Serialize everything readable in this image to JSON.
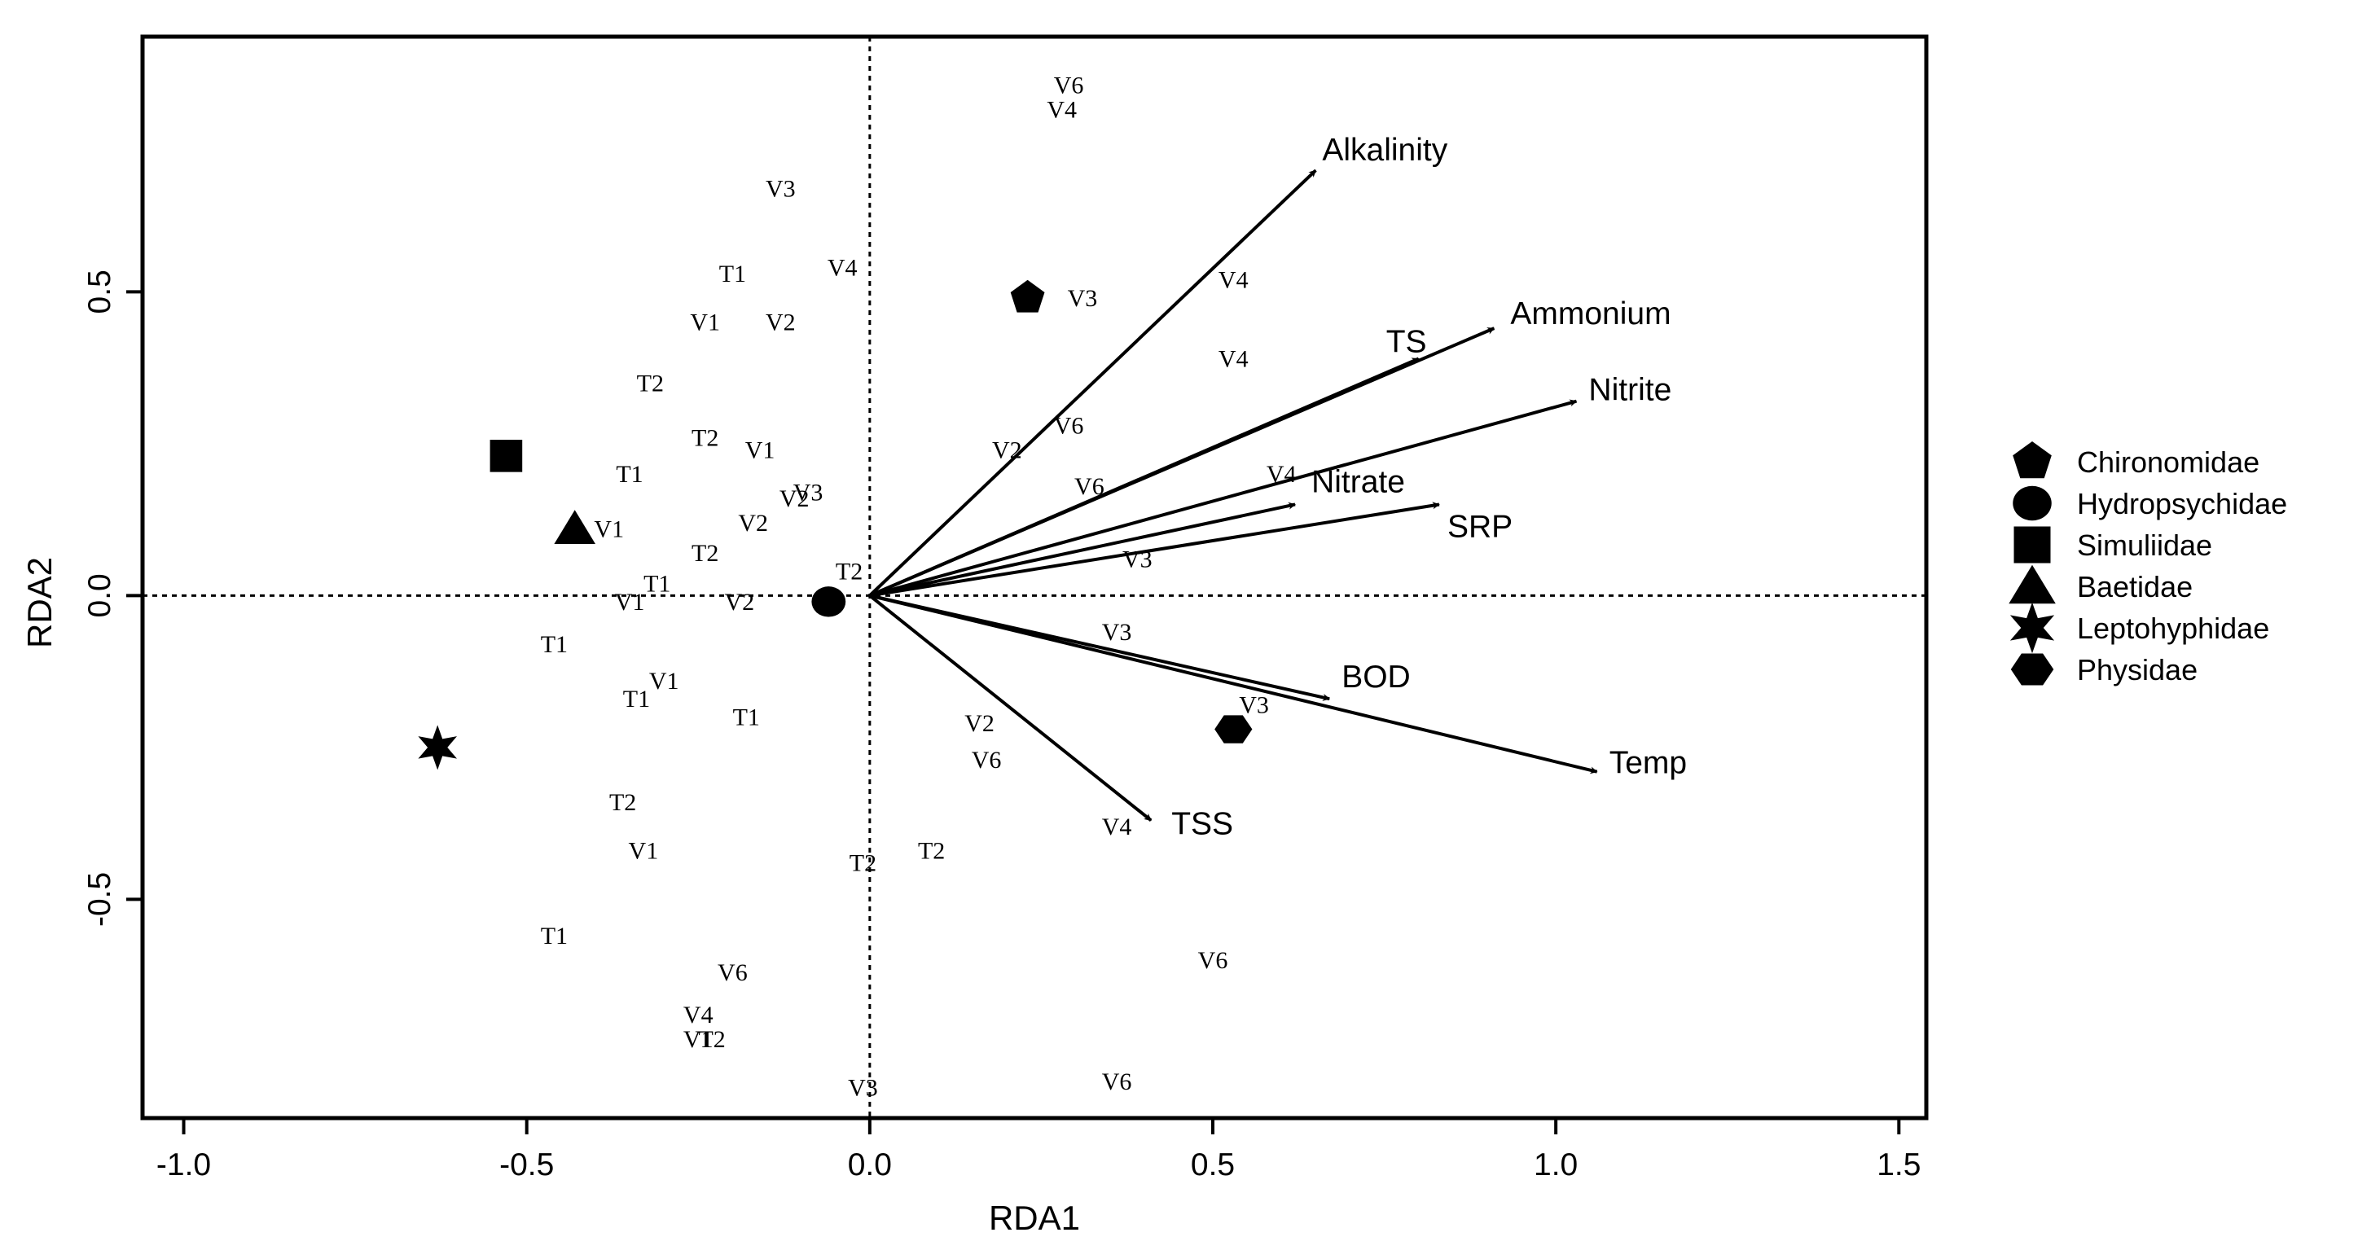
{
  "chart_data": {
    "type": "scatter",
    "subtype": "rda-biplot",
    "title": "",
    "xlabel": "RDA1",
    "ylabel": "RDA2",
    "xlim": [
      -1.06,
      1.54
    ],
    "ylim": [
      -0.86,
      0.92
    ],
    "xticks": [
      -1.0,
      -0.5,
      0.0,
      0.5,
      1.0,
      1.5
    ],
    "xtick_labels": [
      "-1.0",
      "-0.5",
      "0.0",
      "0.5",
      "1.0",
      "1.5"
    ],
    "yticks": [
      -0.5,
      0.0,
      0.5
    ],
    "ytick_labels": [
      "-0.5",
      "0.0",
      "0.5"
    ],
    "reference_lines": {
      "x": 0,
      "y": 0,
      "style": "dotted"
    },
    "sites": [
      {
        "label": "V6",
        "x": 0.29,
        "y": 0.84
      },
      {
        "label": "V4",
        "x": 0.28,
        "y": 0.8
      },
      {
        "label": "V3",
        "x": -0.13,
        "y": 0.67
      },
      {
        "label": "T1",
        "x": -0.2,
        "y": 0.53
      },
      {
        "label": "V4",
        "x": -0.04,
        "y": 0.54
      },
      {
        "label": "V1",
        "x": -0.24,
        "y": 0.45
      },
      {
        "label": "V2",
        "x": -0.13,
        "y": 0.45
      },
      {
        "label": "V3",
        "x": 0.31,
        "y": 0.49
      },
      {
        "label": "V4",
        "x": 0.53,
        "y": 0.52
      },
      {
        "label": "V4",
        "x": 0.53,
        "y": 0.39
      },
      {
        "label": "T2",
        "x": -0.32,
        "y": 0.35
      },
      {
        "label": "T2",
        "x": -0.24,
        "y": 0.26
      },
      {
        "label": "V1",
        "x": -0.16,
        "y": 0.24
      },
      {
        "label": "V2",
        "x": 0.2,
        "y": 0.24
      },
      {
        "label": "V6",
        "x": 0.29,
        "y": 0.28
      },
      {
        "label": "T1",
        "x": -0.35,
        "y": 0.2
      },
      {
        "label": "V6",
        "x": 0.32,
        "y": 0.18
      },
      {
        "label": "V4",
        "x": 0.6,
        "y": 0.2
      },
      {
        "label": "V3",
        "x": -0.09,
        "y": 0.17
      },
      {
        "label": "V2",
        "x": -0.11,
        "y": 0.16
      },
      {
        "label": "V1",
        "x": -0.38,
        "y": 0.11
      },
      {
        "label": "V2",
        "x": -0.17,
        "y": 0.12
      },
      {
        "label": "T2",
        "x": -0.24,
        "y": 0.07
      },
      {
        "label": "V3",
        "x": 0.39,
        "y": 0.06
      },
      {
        "label": "T1",
        "x": -0.31,
        "y": 0.02
      },
      {
        "label": "T2",
        "x": -0.03,
        "y": 0.04
      },
      {
        "label": "V1",
        "x": -0.35,
        "y": -0.01
      },
      {
        "label": "V2",
        "x": -0.19,
        "y": -0.01
      },
      {
        "label": "T1",
        "x": -0.46,
        "y": -0.08
      },
      {
        "label": "V3",
        "x": 0.36,
        "y": -0.06
      },
      {
        "label": "V1",
        "x": -0.3,
        "y": -0.14
      },
      {
        "label": "T1",
        "x": -0.34,
        "y": -0.17
      },
      {
        "label": "T1",
        "x": -0.18,
        "y": -0.2
      },
      {
        "label": "V3",
        "x": 0.56,
        "y": -0.18
      },
      {
        "label": "V2",
        "x": 0.16,
        "y": -0.21
      },
      {
        "label": "V6",
        "x": 0.17,
        "y": -0.27
      },
      {
        "label": "T2",
        "x": -0.36,
        "y": -0.34
      },
      {
        "label": "V4",
        "x": 0.36,
        "y": -0.38
      },
      {
        "label": "V1",
        "x": -0.33,
        "y": -0.42
      },
      {
        "label": "T2",
        "x": -0.01,
        "y": -0.44
      },
      {
        "label": "T2",
        "x": 0.09,
        "y": -0.42
      },
      {
        "label": "T1",
        "x": -0.46,
        "y": -0.56
      },
      {
        "label": "V6",
        "x": -0.2,
        "y": -0.62
      },
      {
        "label": "V6",
        "x": 0.5,
        "y": -0.6
      },
      {
        "label": "V4",
        "x": -0.25,
        "y": -0.69
      },
      {
        "label": "V1",
        "x": -0.25,
        "y": -0.73
      },
      {
        "label": "T2",
        "x": -0.23,
        "y": -0.73
      },
      {
        "label": "V6",
        "x": 0.36,
        "y": -0.8
      },
      {
        "label": "V3",
        "x": -0.01,
        "y": -0.81
      }
    ],
    "vectors": [
      {
        "label": "Alkalinity",
        "x": 0.65,
        "y": 0.7
      },
      {
        "label": "Ammonium",
        "x": 0.91,
        "y": 0.44
      },
      {
        "label": "TS",
        "x": 0.8,
        "y": 0.39
      },
      {
        "label": "Nitrite",
        "x": 1.03,
        "y": 0.32
      },
      {
        "label": "Nitrate",
        "x": 0.62,
        "y": 0.15
      },
      {
        "label": "SRP",
        "x": 0.83,
        "y": 0.15
      },
      {
        "label": "BOD",
        "x": 0.67,
        "y": -0.17
      },
      {
        "label": "Temp",
        "x": 1.06,
        "y": -0.29
      },
      {
        "label": "TSS",
        "x": 0.41,
        "y": -0.37
      }
    ],
    "species": [
      {
        "name": "Chironomidae",
        "marker": "pentagon",
        "x": 0.23,
        "y": 0.49
      },
      {
        "name": "Hydropsychidae",
        "marker": "circle",
        "x": -0.06,
        "y": -0.01
      },
      {
        "name": "Simuliidae",
        "marker": "square",
        "x": -0.53,
        "y": 0.23
      },
      {
        "name": "Baetidae",
        "marker": "triangle",
        "x": -0.43,
        "y": 0.11
      },
      {
        "name": "Leptohyphidae",
        "marker": "star",
        "x": -0.63,
        "y": -0.25
      },
      {
        "name": "Physidae",
        "marker": "hexagon",
        "x": 0.53,
        "y": -0.22
      }
    ],
    "legend": {
      "placement": "right",
      "entries": [
        {
          "marker": "pentagon",
          "label": "Chironomidae"
        },
        {
          "marker": "circle",
          "label": "Hydropsychidae"
        },
        {
          "marker": "square",
          "label": "Simuliidae"
        },
        {
          "marker": "triangle",
          "label": "Baetidae"
        },
        {
          "marker": "star",
          "label": "Leptohyphidae"
        },
        {
          "marker": "hexagon",
          "label": "Physidae"
        }
      ]
    },
    "colors": {
      "ink": "#000000",
      "background": "#ffffff"
    }
  }
}
